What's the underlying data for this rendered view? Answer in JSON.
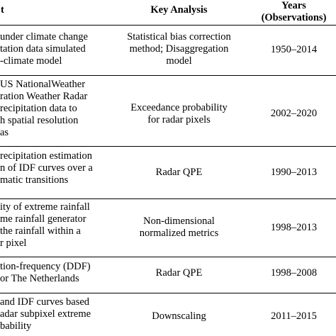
{
  "header": {
    "col1": "t",
    "col2": "Key Analysis",
    "col3_line1": "Years",
    "col3_line2": "(Observations)"
  },
  "rows": [
    {
      "col1": [
        "under climate change",
        "tation data simulated",
        "-climate model"
      ],
      "col2": [
        "Statistical bias correction",
        "method; Disaggregation",
        "model"
      ],
      "col3": "1950–2014"
    },
    {
      "col1": [
        "US NationalWeather",
        "ration Weather Radar",
        "recipitation data to",
        "h spatial resolution",
        "as"
      ],
      "col2": [
        "Exceedance probability",
        "for radar pixels"
      ],
      "col3": "2002–2020"
    },
    {
      "col1": [
        "recipitation estimation",
        "n of IDF curves over a",
        "matic transitions"
      ],
      "col2": [
        "Radar QPE"
      ],
      "col3": "1990–2013"
    },
    {
      "col1": [
        "ity of extreme rainfall",
        "me rainfall generator",
        "the rainfall within a",
        "r pixel"
      ],
      "col2": [
        "Non-dimensional",
        "normalized metrics"
      ],
      "col3": "1998–2013"
    },
    {
      "col1": [
        "tion-frequency (DDF)",
        "or The Netherlands"
      ],
      "col2": [
        "Radar QPE"
      ],
      "col3": "1998–2008"
    },
    {
      "col1": [
        "and IDF curves based",
        "adar subpixel extreme",
        "bability"
      ],
      "col2": [
        "Downscaling"
      ],
      "col3": "2011–2015"
    }
  ]
}
